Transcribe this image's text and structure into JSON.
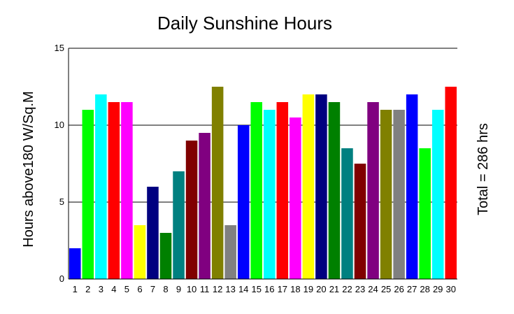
{
  "chart_data": {
    "type": "bar",
    "title": "Daily Sunshine Hours",
    "xlabel": "",
    "ylabel": "Hours above180 W/Sq.M",
    "right_label": "Total = 286 hrs",
    "ylim": [
      0,
      15
    ],
    "yticks": [
      "0",
      "5",
      "10",
      "15"
    ],
    "grid": true,
    "legend": "none",
    "categories": [
      "1",
      "2",
      "3",
      "4",
      "5",
      "6",
      "7",
      "8",
      "9",
      "10",
      "11",
      "12",
      "13",
      "14",
      "15",
      "16",
      "17",
      "18",
      "19",
      "20",
      "21",
      "22",
      "23",
      "24",
      "25",
      "26",
      "27",
      "28",
      "29",
      "30"
    ],
    "values": [
      2,
      11,
      12,
      11.5,
      11.5,
      3.5,
      6,
      3,
      7,
      9,
      9.5,
      12.5,
      3.5,
      10,
      11.5,
      11,
      11.5,
      10.5,
      12,
      12,
      11.5,
      8.5,
      7.5,
      11.5,
      11,
      11,
      12,
      8.5,
      11,
      12.5
    ],
    "colors": [
      "#0000ff",
      "#00ff00",
      "#00ffff",
      "#ff0000",
      "#ff00ff",
      "#ffff00",
      "#000080",
      "#008000",
      "#008080",
      "#800000",
      "#800080",
      "#808000",
      "#808080"
    ]
  }
}
